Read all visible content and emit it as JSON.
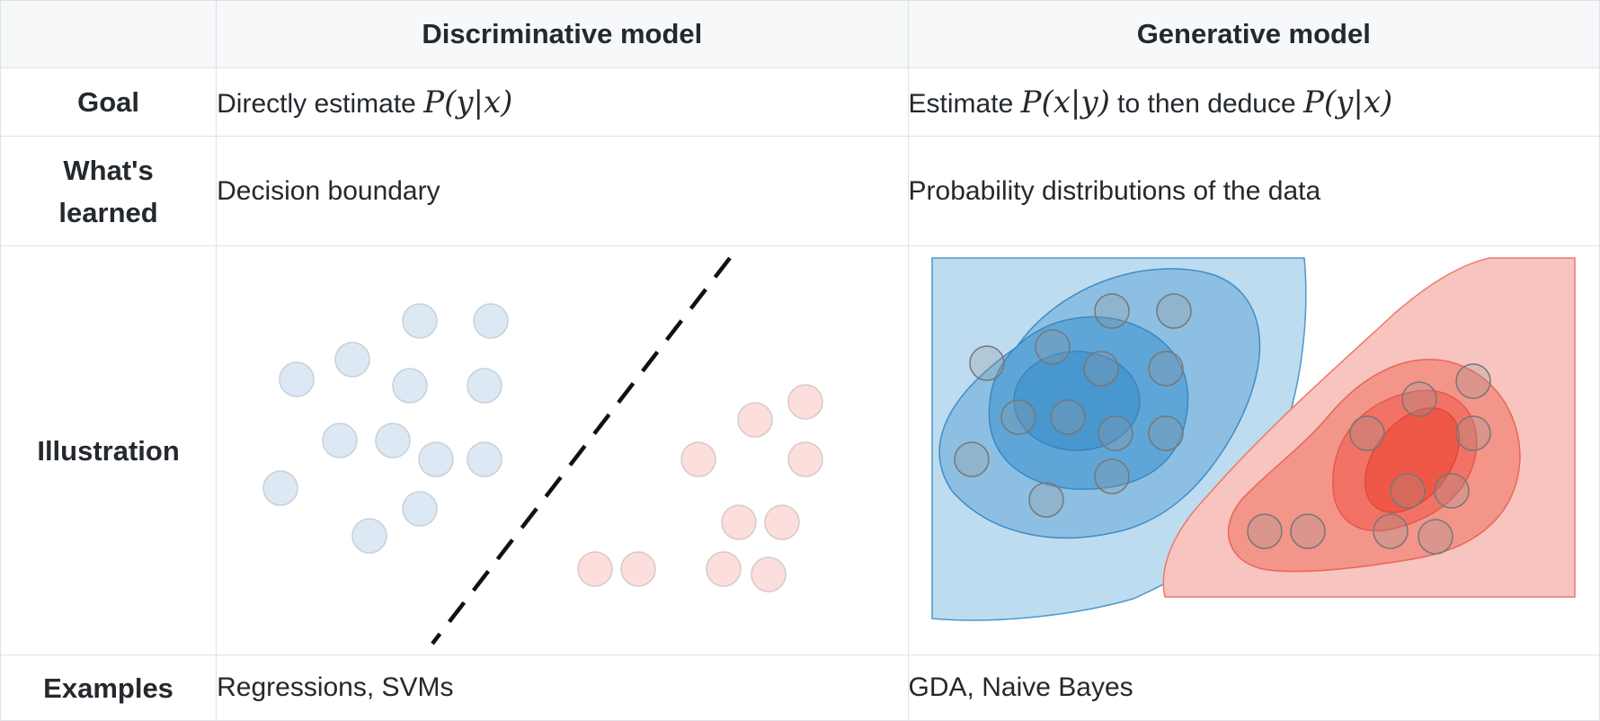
{
  "table": {
    "columns": [
      "",
      "Discriminative model",
      "Generative model"
    ],
    "rows": {
      "goal": {
        "label": "Goal",
        "discriminative": {
          "text": "Directly estimate ",
          "math": "P(y|x)"
        },
        "generative": {
          "text_a": "Estimate ",
          "math_a": "P(x|y)",
          "text_b": " to then deduce ",
          "math_b": "P(y|x)"
        }
      },
      "learned": {
        "label_line1": "What's",
        "label_line2": "learned",
        "discriminative": "Decision boundary",
        "generative": "Probability distributions of the data"
      },
      "illustration": {
        "label": "Illustration"
      },
      "examples": {
        "label": "Examples",
        "discriminative": "Regressions, SVMs",
        "generative": "GDA, Naive Bayes"
      }
    }
  },
  "colors": {
    "header_bg": "#f6f8fa",
    "border": "#dfe2e5",
    "class_blue": "#dce9f5",
    "class_red": "#fcdedc",
    "blue_region": "#3288c9",
    "red_region": "#f26a56",
    "boundary": "#111111"
  }
}
